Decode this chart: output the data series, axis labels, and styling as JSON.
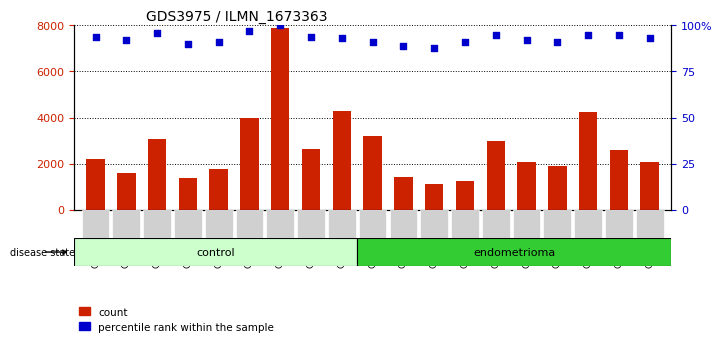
{
  "title": "GDS3975 / ILMN_1673363",
  "samples": [
    "GSM572752",
    "GSM572753",
    "GSM572754",
    "GSM572755",
    "GSM572756",
    "GSM572757",
    "GSM572761",
    "GSM572762",
    "GSM572764",
    "GSM572747",
    "GSM572748",
    "GSM572749",
    "GSM572750",
    "GSM572751",
    "GSM572758",
    "GSM572759",
    "GSM572760",
    "GSM572763",
    "GSM572765"
  ],
  "counts": [
    2200,
    1600,
    3050,
    1350,
    1750,
    4000,
    7900,
    2650,
    4300,
    3200,
    1400,
    1100,
    1250,
    3000,
    2050,
    1900,
    4250,
    2600,
    2050
  ],
  "percentile": [
    94,
    92,
    96,
    90,
    91,
    97,
    100,
    94,
    93,
    91,
    89,
    88,
    91,
    95,
    92,
    91,
    95,
    95,
    93
  ],
  "groups": [
    "control",
    "control",
    "control",
    "control",
    "control",
    "control",
    "control",
    "control",
    "control",
    "endometrioma",
    "endometrioma",
    "endometrioma",
    "endometrioma",
    "endometrioma",
    "endometrioma",
    "endometrioma",
    "endometrioma",
    "endometrioma",
    "endometrioma"
  ],
  "bar_color": "#cc2200",
  "dot_color": "#0000cc",
  "control_color": "#ccffcc",
  "endometrioma_color": "#33cc33",
  "ylim_left": [
    0,
    8000
  ],
  "ylim_right": [
    0,
    100
  ],
  "yticks_left": [
    0,
    2000,
    4000,
    6000,
    8000
  ],
  "yticks_right": [
    0,
    25,
    50,
    75,
    100
  ],
  "grid_color": "#000000",
  "bg_color": "#e8e8e8",
  "plot_bg": "#ffffff"
}
